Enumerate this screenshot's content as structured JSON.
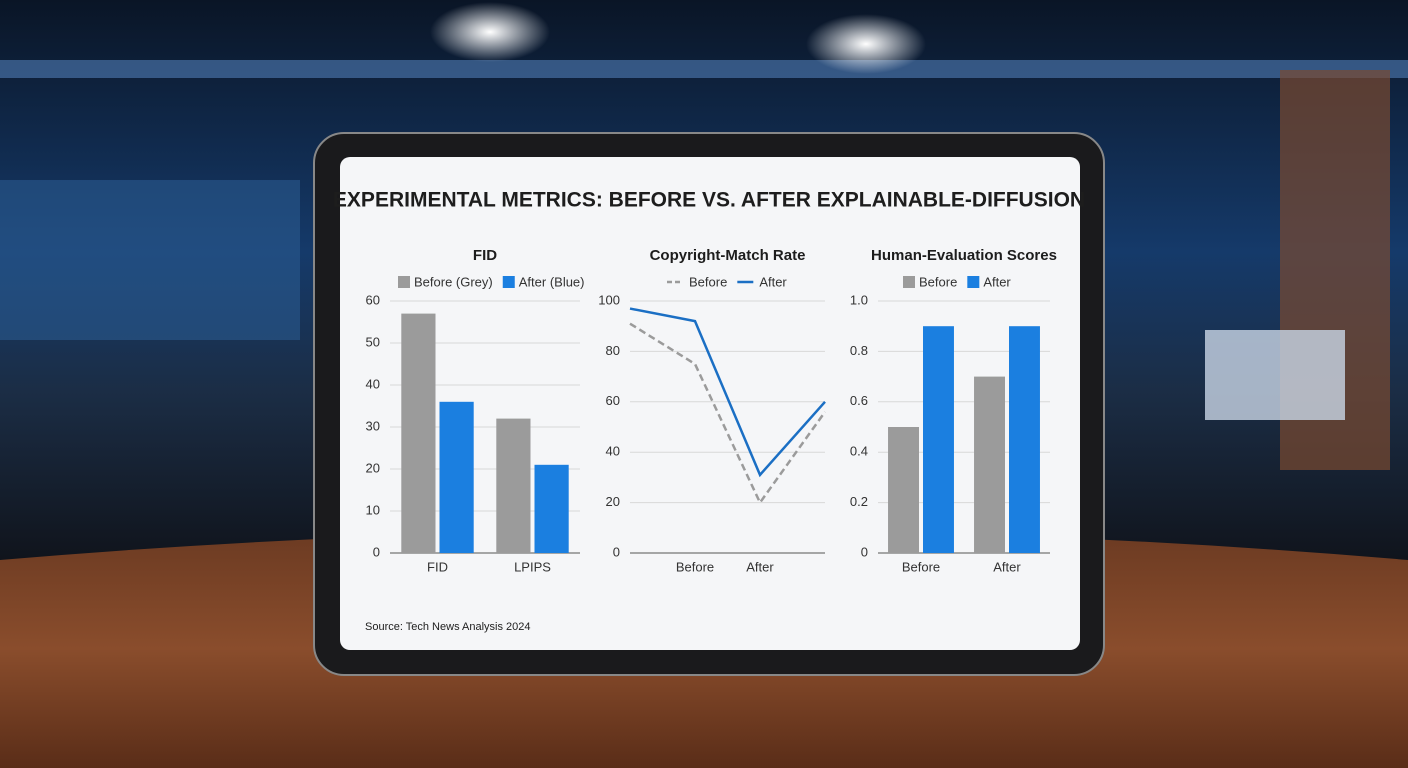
{
  "title": "EXPERIMENTAL METRICS: BEFORE VS. AFTER EXPLAINABLE-DIFFUSION",
  "source": "Source: Tech News Analysis 2024",
  "chart_data": [
    {
      "type": "bar",
      "title": "FID",
      "categories": [
        "FID",
        "LPIPS"
      ],
      "series": [
        {
          "name": "Before (Grey)",
          "color": "#9b9b9b",
          "values": [
            57,
            32
          ]
        },
        {
          "name": "After (Blue)",
          "color": "#1b7fe0",
          "values": [
            36,
            21
          ]
        }
      ],
      "ylim": [
        0,
        60
      ],
      "yticks": [
        0,
        10,
        20,
        30,
        40,
        50,
        60
      ],
      "grid": true
    },
    {
      "type": "line",
      "title": "Copyright-Match Rate",
      "categories": [
        null,
        "Before",
        "After",
        null
      ],
      "series": [
        {
          "name": "Before",
          "color": "#9b9b9b",
          "dashed": true,
          "values": [
            91,
            75,
            20,
            56
          ]
        },
        {
          "name": "After",
          "color": "#1b6fc4",
          "dashed": false,
          "values": [
            97,
            92,
            31,
            60
          ]
        }
      ],
      "ylim": [
        0,
        100
      ],
      "yticks": [
        0,
        20,
        40,
        60,
        80,
        100
      ],
      "grid": true
    },
    {
      "type": "bar",
      "title": "Human-Evaluation Scores",
      "categories": [
        "Before",
        "After"
      ],
      "series": [
        {
          "name": "Before",
          "color": "#9b9b9b",
          "values": [
            0.5,
            0.7
          ]
        },
        {
          "name": "After",
          "color": "#1b7fe0",
          "values": [
            0.9,
            0.9
          ]
        }
      ],
      "ylim": [
        0,
        1
      ],
      "yticks": [
        0,
        0.2,
        0.4,
        0.6,
        0.8,
        {
          "value": 1,
          "label": "1.0"
        }
      ],
      "grid": true
    }
  ]
}
